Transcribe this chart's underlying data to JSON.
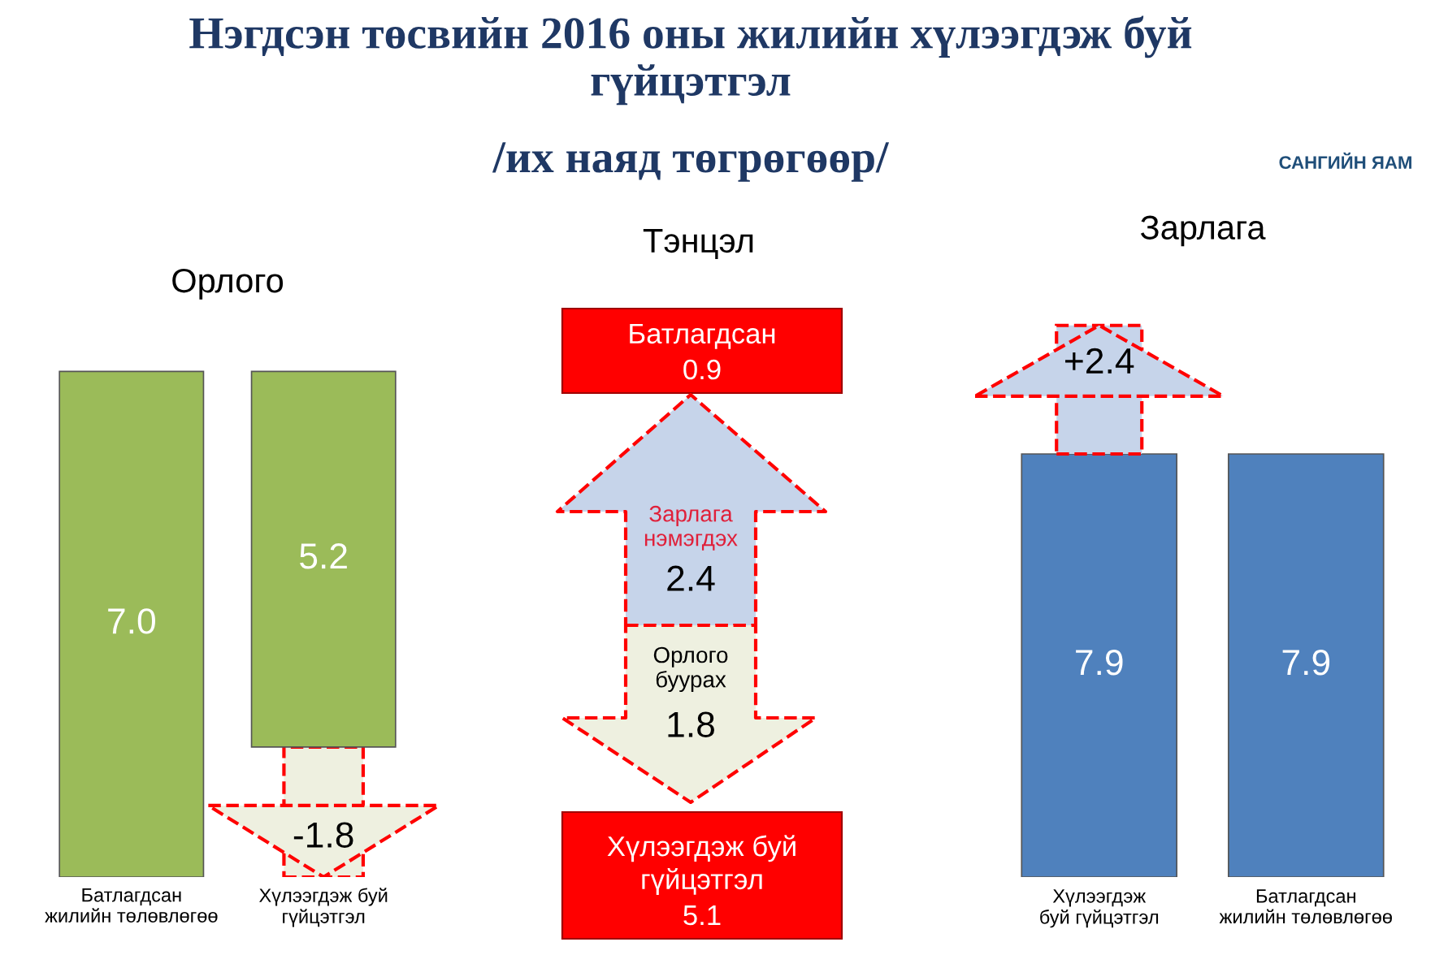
{
  "chart_data": [
    {
      "type": "other",
      "title": "Нэгдсэн төсвийн 2016 оны жилийн хүлээгдэж буй\nгүйцэтгэл",
      "subtitle": "/их наяд төгрөгөөр/",
      "annotations": [
        "САНГИЙН ЯАМ"
      ]
    },
    {
      "type": "bar",
      "title": "Орлого",
      "stacked": true,
      "categories": [
        "Батлагдсан\nжилийн төлөвлөгөө",
        "Хүлээгдэж буй\nгүйцэтгэл"
      ],
      "series": [
        {
          "color": "#eef0e0",
          "values": [
            null,
            1.8
          ]
        },
        {
          "color": "#9bbb59",
          "values": [
            7.0,
            5.2
          ],
          "value_labels": [
            "7.0",
            "5.2"
          ]
        }
      ],
      "annotations": [
        "-1.8"
      ]
    },
    {
      "type": "other",
      "title": "Тэнцэл",
      "data_labels": true,
      "categories": [
        "Батлагдсан",
        "Зарлага\nнэмэгдэх",
        "Орлого\nбуурах",
        "Хүлээгдэж буй\nгүйцэтгэл"
      ],
      "values": [
        0.9,
        2.4,
        1.8,
        5.1
      ],
      "colors": [
        "#ff0000",
        "#c6d4ea",
        "#eef0e0",
        "#ff0000"
      ]
    },
    {
      "type": "bar",
      "title": "Зарлага",
      "stacked": true,
      "categories": [
        "Хүлээгдэж\nбуй гүйцэтгэл",
        "Батлагдсан\nжилийн төлөвлөгөө"
      ],
      "series": [
        {
          "color": "#4f81bd",
          "values": [
            7.9,
            7.9
          ],
          "value_labels": [
            "7.9",
            "7.9"
          ]
        },
        {
          "color": "#c6d4ea",
          "values": [
            2.4,
            null
          ]
        }
      ],
      "annotations": [
        "+2.4"
      ]
    }
  ]
}
